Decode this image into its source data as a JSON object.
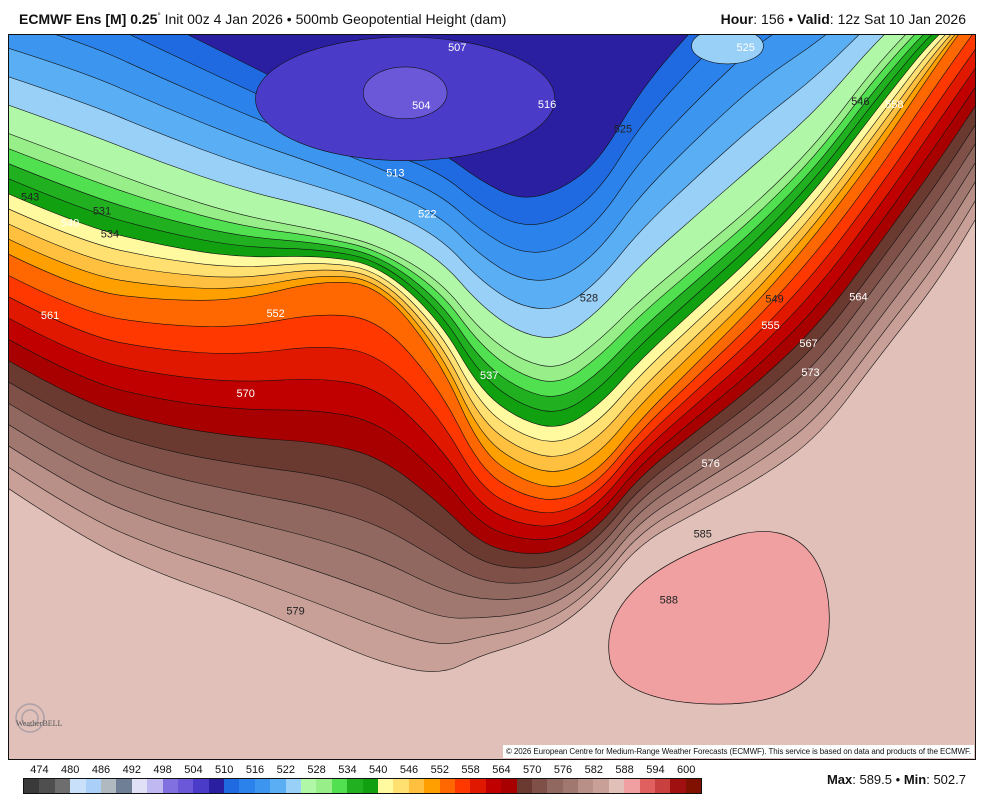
{
  "header": {
    "model": "ECMWF Ens [M]",
    "resolution": "0.25",
    "degree": "°",
    "init": "Init 00z 4 Jan 2026",
    "bullet": "•",
    "field": "500mb Geopotential Height (dam)",
    "hour_label": "Hour",
    "hour": "156",
    "valid_label": "Valid",
    "valid": "12z Sat 10 Jan 2026"
  },
  "map": {
    "contour_labels": [
      "504",
      "507",
      "513",
      "516",
      "522",
      "525",
      "525",
      "528",
      "531",
      "534",
      "537",
      "540",
      "543",
      "546",
      "549",
      "552",
      "555",
      "558",
      "561",
      "564",
      "567",
      "570",
      "573",
      "576",
      "579",
      "585",
      "588"
    ],
    "logo_text": "WeatherBELL"
  },
  "copyright": "© 2026 European Centre for Medium-Range Weather Forecasts (ECMWF). This service is based on data and products of the ECMWF.",
  "colorbar": {
    "labels": [
      "474",
      "480",
      "486",
      "492",
      "498",
      "504",
      "510",
      "516",
      "522",
      "528",
      "534",
      "540",
      "546",
      "552",
      "558",
      "564",
      "570",
      "576",
      "582",
      "588",
      "594",
      "600"
    ],
    "colors": [
      "#3a3a3a",
      "#4f4f4f",
      "#6e6e6e",
      "#c8e0fa",
      "#aacff8",
      "#b0b8c0",
      "#6e7f96",
      "#e0e0f6",
      "#c0b8f0",
      "#8070e0",
      "#6a58d8",
      "#4a3cc8",
      "#2a1fa0",
      "#1f6ae0",
      "#2a82ea",
      "#3c96f0",
      "#5aaef4",
      "#98d0f8",
      "#b0f8a8",
      "#98ee88",
      "#50e050",
      "#20b020",
      "#10a010",
      "#fffaa0",
      "#ffe070",
      "#ffc040",
      "#ffa000",
      "#ff6800",
      "#ff3800",
      "#e01800",
      "#c00000",
      "#a80000",
      "#6a3a30",
      "#7e5048",
      "#906860",
      "#a07870",
      "#b89088",
      "#c8a098",
      "#e0c0b8",
      "#f0a0a0",
      "#e06060",
      "#c84040",
      "#a01010",
      "#801000"
    ]
  },
  "stats": {
    "max_label": "Max",
    "max": "589.5",
    "min_label": "Min",
    "min": "502.7"
  }
}
